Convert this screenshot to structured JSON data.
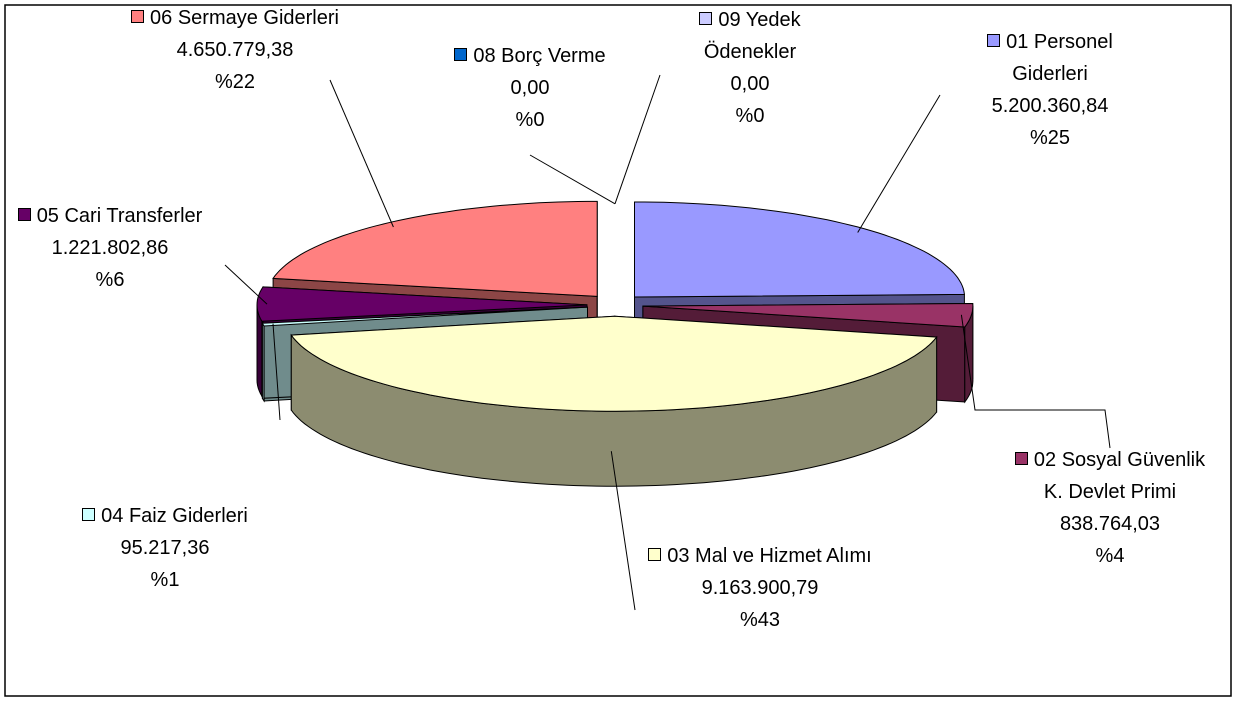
{
  "chart_data": {
    "type": "pie3d",
    "categories": [
      "01 Personel Giderleri",
      "02 Sosyal Güvenlik K. Devlet Primi",
      "03 Mal ve Hizmet Alımı",
      "04 Faiz Giderleri",
      "05 Cari Transferler",
      "06 Sermaye Giderleri",
      "08 Borç Verme",
      "09 Yedek Ödenekler"
    ],
    "values": [
      5200360.84,
      838764.03,
      9163900.79,
      95217.36,
      1221802.86,
      4650779.38,
      0,
      0
    ],
    "value_labels": [
      "5.200.360,84",
      "838.764,03",
      "9.163.900,79",
      "95.217,36",
      "1.221.802,86",
      "4.650.779,38",
      "0,00",
      "0,00"
    ],
    "percents": [
      25,
      4,
      43,
      1,
      6,
      22,
      0,
      0
    ],
    "percent_labels": [
      "%25",
      "%4",
      "%43",
      "%1",
      "%6",
      "%22",
      "%0",
      "%0"
    ],
    "colors": [
      "#9999ff",
      "#993366",
      "#ffffcc",
      "#ccffff",
      "#660066",
      "#ff8080",
      "#0066cc",
      "#ccccff"
    ]
  }
}
